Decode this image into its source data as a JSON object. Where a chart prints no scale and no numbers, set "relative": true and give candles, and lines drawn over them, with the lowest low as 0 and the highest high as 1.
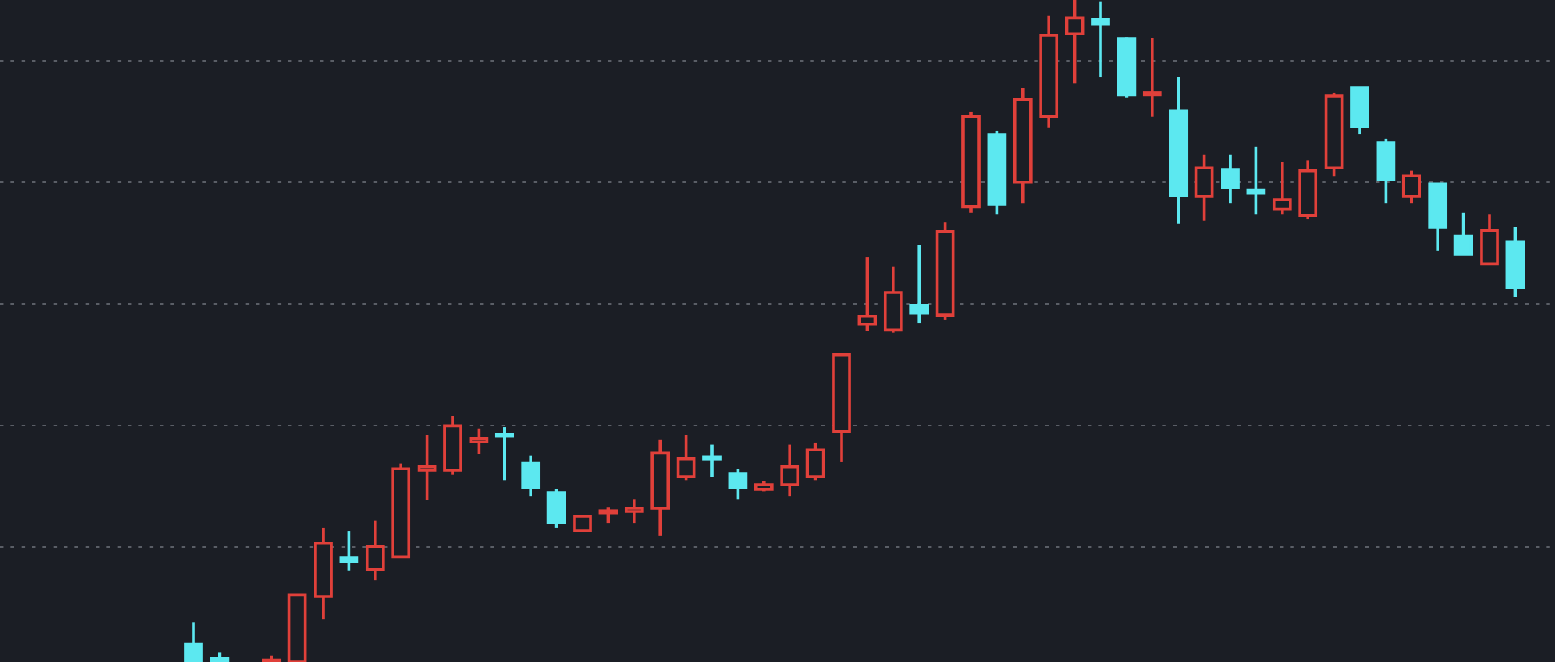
{
  "chart_data": {
    "type": "candlestick",
    "relative": true,
    "grid": "y",
    "categories": [
      null,
      null,
      null,
      null,
      null,
      null,
      null,
      null,
      null,
      null,
      null,
      null,
      null,
      null,
      null,
      null,
      null,
      null,
      null,
      null,
      null,
      null,
      null,
      null,
      null,
      null,
      null,
      null,
      null,
      null,
      null,
      null,
      null,
      null,
      null,
      null,
      null,
      null,
      null,
      null,
      null,
      null,
      null,
      null,
      null,
      null,
      null,
      null,
      null,
      null,
      null,
      null
    ],
    "ohlc": [
      [
        0.027,
        0.06,
        0,
        0
      ],
      [
        0.005,
        0.014,
        0,
        0
      ],
      null,
      [
        0,
        0.01,
        0,
        0.002
      ],
      [
        0,
        0.101,
        0,
        0.101
      ],
      [
        0.099,
        0.203,
        0.065,
        0.179
      ],
      [
        0.157,
        0.198,
        0.138,
        0.152
      ],
      [
        0.14,
        0.213,
        0.123,
        0.174
      ],
      [
        0.159,
        0.3,
        0.157,
        0.292
      ],
      [
        0.29,
        0.343,
        0.244,
        0.295
      ],
      [
        0.29,
        0.372,
        0.283,
        0.357
      ],
      [
        0.333,
        0.353,
        0.314,
        0.338
      ],
      [
        0.343,
        0.355,
        0.275,
        0.341
      ],
      [
        0.3,
        0.312,
        0.251,
        0.263
      ],
      [
        0.256,
        0.261,
        0.203,
        0.21
      ],
      [
        0.198,
        0.22,
        0.196,
        0.22
      ],
      [
        0.225,
        0.234,
        0.21,
        0.227
      ],
      [
        0.227,
        0.246,
        0.21,
        0.232
      ],
      [
        0.232,
        0.336,
        0.191,
        0.316
      ],
      [
        0.28,
        0.343,
        0.275,
        0.307
      ],
      [
        0.309,
        0.329,
        0.28,
        0.307
      ],
      [
        0.285,
        0.292,
        0.246,
        0.263
      ],
      [
        0.261,
        0.273,
        0.258,
        0.268
      ],
      [
        0.268,
        0.329,
        0.251,
        0.295
      ],
      [
        0.28,
        0.331,
        0.275,
        0.321
      ],
      [
        0.348,
        0.464,
        0.302,
        0.464
      ],
      [
        0.51,
        0.611,
        0.5,
        0.522
      ],
      [
        0.502,
        0.597,
        0.498,
        0.558
      ],
      [
        0.539,
        0.63,
        0.512,
        0.527
      ],
      [
        0.524,
        0.664,
        0.517,
        0.65
      ],
      [
        0.688,
        0.831,
        0.679,
        0.824
      ],
      [
        0.797,
        0.802,
        0.676,
        0.691
      ],
      [
        0.725,
        0.867,
        0.693,
        0.85
      ],
      [
        0.824,
        0.976,
        0.807,
        0.947
      ],
      [
        0.949,
        1.0,
        0.874,
        0.973
      ],
      [
        0.971,
        0.998,
        0.884,
        0.964
      ],
      [
        0.942,
        0.944,
        0.853,
        0.857
      ],
      [
        0.857,
        0.942,
        0.824,
        0.86
      ],
      [
        0.833,
        0.884,
        0.662,
        0.705
      ],
      [
        0.703,
        0.766,
        0.667,
        0.746
      ],
      [
        0.744,
        0.766,
        0.693,
        0.717
      ],
      [
        0.713,
        0.778,
        0.676,
        0.708
      ],
      [
        0.684,
        0.756,
        0.676,
        0.698
      ],
      [
        0.674,
        0.758,
        0.669,
        0.742
      ],
      [
        0.746,
        0.86,
        0.734,
        0.855
      ],
      [
        0.867,
        0.867,
        0.797,
        0.809
      ],
      [
        0.785,
        0.79,
        0.693,
        0.729
      ],
      [
        0.703,
        0.742,
        0.693,
        0.734
      ],
      [
        0.722,
        0.722,
        0.621,
        0.657
      ],
      [
        0.643,
        0.679,
        0.616,
        0.616
      ],
      [
        0.601,
        0.676,
        0.599,
        0.652
      ],
      [
        0.635,
        0.657,
        0.551,
        0.565
      ]
    ],
    "colors": [
      "#5ce8f0",
      "#5ce8f0",
      null,
      "#e0403a",
      "#e0403a",
      "#e0403a",
      "#5ce8f0",
      "#e0403a",
      "#e0403a",
      "#e0403a",
      "#e0403a",
      "#e0403a",
      "#5ce8f0",
      "#5ce8f0",
      "#5ce8f0",
      "#e0403a",
      "#e0403a",
      "#e0403a",
      "#e0403a",
      "#e0403a",
      "#5ce8f0",
      "#5ce8f0",
      "#e0403a",
      "#e0403a",
      "#e0403a",
      "#e0403a",
      "#e0403a",
      "#e0403a",
      "#5ce8f0",
      "#e0403a",
      "#e0403a",
      "#5ce8f0",
      "#e0403a",
      "#e0403a",
      "#e0403a",
      "#5ce8f0",
      "#5ce8f0",
      "#e0403a",
      "#5ce8f0",
      "#e0403a",
      "#5ce8f0",
      "#5ce8f0",
      "#e0403a",
      "#e0403a",
      "#e0403a",
      "#5ce8f0",
      "#5ce8f0",
      "#e0403a",
      "#5ce8f0",
      "#5ce8f0",
      "#e0403a",
      "#5ce8f0"
    ]
  }
}
